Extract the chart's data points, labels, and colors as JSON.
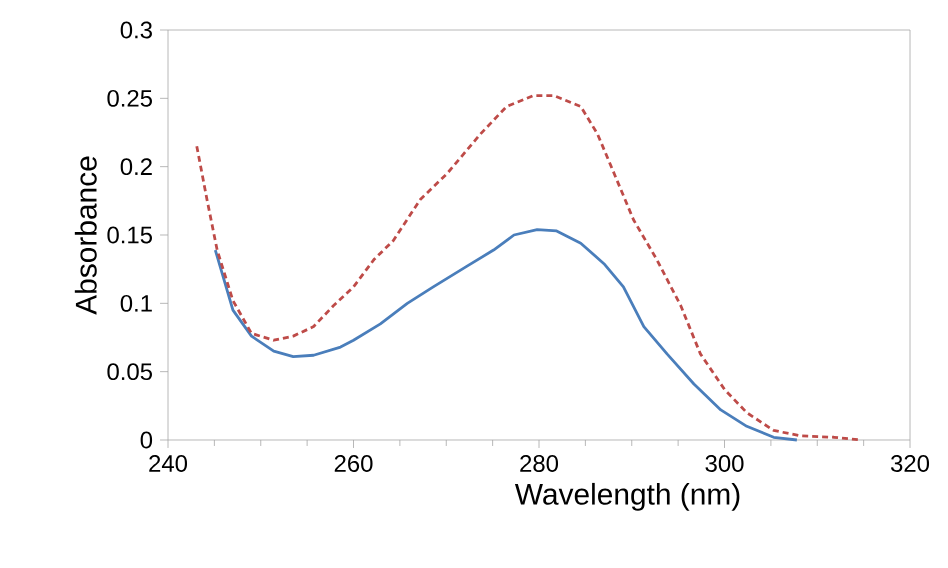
{
  "chart_data": {
    "type": "line",
    "xlabel": "Wavelength (nm)",
    "ylabel": "Absorbance",
    "xlim": [
      240,
      320
    ],
    "xticks": [
      240,
      260,
      280,
      300,
      320
    ],
    "ylim": [
      0,
      0.3
    ],
    "yticks": [
      0,
      0.05,
      0.1,
      0.15,
      0.2,
      0.25,
      0.3
    ],
    "grid": false,
    "marker": "none",
    "series": [
      {
        "color": "#4a7ebb",
        "line_style": "solid",
        "x": [
          245.1,
          247,
          249,
          251.4,
          253.5,
          255.7,
          258.6,
          260,
          262.9,
          265.8,
          268.6,
          272.2,
          275.1,
          277.3,
          279.8,
          281.9,
          284.5,
          287,
          289.1,
          291.3,
          293.8,
          296.7,
          299.6,
          302.4,
          305.3,
          307.8
        ],
        "values": [
          0.139,
          0.095,
          0.076,
          0.065,
          0.061,
          0.062,
          0.068,
          0.073,
          0.085,
          0.1,
          0.112,
          0.127,
          0.139,
          0.15,
          0.154,
          0.153,
          0.144,
          0.129,
          0.112,
          0.083,
          0.063,
          0.041,
          0.022,
          0.01,
          0.002,
          0
        ]
      },
      {
        "color": "#be4b48",
        "line_style": "dashed",
        "x": [
          243.1,
          244.2,
          245.3,
          247,
          249,
          251.4,
          253.5,
          255.7,
          257.8,
          260,
          262.2,
          264.3,
          267.2,
          270.1,
          273.7,
          276.5,
          279.4,
          281.6,
          284.5,
          286.3,
          288.1,
          290.2,
          292.7,
          295.3,
          297.4,
          300,
          302.4,
          305.3,
          308.2,
          311.8,
          314.7
        ],
        "values": [
          0.215,
          0.176,
          0.139,
          0.102,
          0.078,
          0.073,
          0.076,
          0.083,
          0.098,
          0.112,
          0.132,
          0.146,
          0.176,
          0.195,
          0.224,
          0.244,
          0.252,
          0.252,
          0.244,
          0.224,
          0.195,
          0.161,
          0.132,
          0.098,
          0.063,
          0.037,
          0.02,
          0.007,
          0.003,
          0.002,
          0
        ]
      }
    ]
  }
}
